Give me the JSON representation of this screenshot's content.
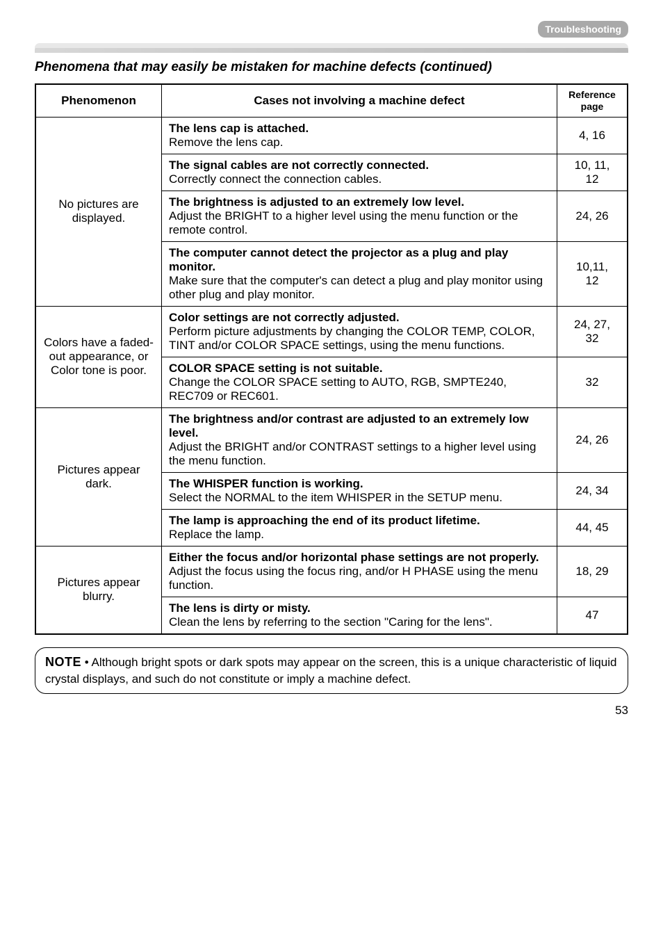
{
  "header_tag": "Troubleshooting",
  "section_title": "Phenomena that may easily be mistaken for machine defects (continued)",
  "table": {
    "headers": {
      "phenomenon": "Phenomenon",
      "cases": "Cases not involving a machine defect",
      "ref_l1": "Reference",
      "ref_l2": "page"
    },
    "groups": [
      {
        "phenomenon": "No pictures are displayed.",
        "rows": [
          {
            "bold": "The lens cap is attached.",
            "body": "Remove the lens cap.",
            "ref": "4, 16"
          },
          {
            "bold": "The signal cables are not correctly connected.",
            "body": "Correctly connect the connection cables.",
            "ref_l1": "10, 11,",
            "ref_l2": "12"
          },
          {
            "bold": "The brightness is adjusted to an extremely low level.",
            "body": "Adjust the BRIGHT to a higher level using the menu function or the remote control.",
            "ref": "24, 26"
          },
          {
            "bold": "The computer cannot detect the projector as a plug and play monitor.",
            "body": "Make sure that the computer's can detect a plug and play monitor using other plug and play monitor.",
            "ref_l1": "10,11,",
            "ref_l2": "12"
          }
        ]
      },
      {
        "phenomenon": "Colors have a faded- out appearance, or Color tone is poor.",
        "rows": [
          {
            "bold": "Color settings are not correctly adjusted.",
            "body": "Perform picture adjustments by changing the COLOR TEMP, COLOR, TINT and/or COLOR SPACE settings, using the menu functions.",
            "ref_l1": "24, 27,",
            "ref_l2": "32"
          },
          {
            "bold": "COLOR SPACE setting is not suitable.",
            "body": "Change the COLOR SPACE setting to AUTO, RGB, SMPTE240, REC709 or REC601.",
            "ref": "32"
          }
        ]
      },
      {
        "phenomenon": "Pictures appear dark.",
        "rows": [
          {
            "bold": "The brightness and/or contrast are adjusted to an extremely low level.",
            "body": "Adjust the BRIGHT and/or CONTRAST settings to a higher level using the menu function.",
            "ref": "24, 26"
          },
          {
            "bold": "The WHISPER function is working.",
            "body": "Select the NORMAL to the item WHISPER in the SETUP menu.",
            "ref": "24, 34"
          },
          {
            "bold": "The lamp is approaching the end of its product lifetime.",
            "body": "Replace the lamp.",
            "ref": "44, 45"
          }
        ]
      },
      {
        "phenomenon": "Pictures appear blurry.",
        "rows": [
          {
            "bold": "Either the focus and/or horizontal phase settings are not properly.",
            "body": "Adjust the focus using the focus ring, and/or H PHASE using the menu function.",
            "ref": "18, 29"
          },
          {
            "bold": "The lens is dirty or misty.",
            "body": "Clean the lens by referring to the section \"Caring for the lens\".",
            "ref": "47"
          }
        ]
      }
    ]
  },
  "note": {
    "label": "NOTE",
    "text": " • Although bright spots or dark spots may appear on the screen, this is a unique characteristic of liquid crystal displays, and such do not constitute or imply a machine defect."
  },
  "page_number": "53"
}
